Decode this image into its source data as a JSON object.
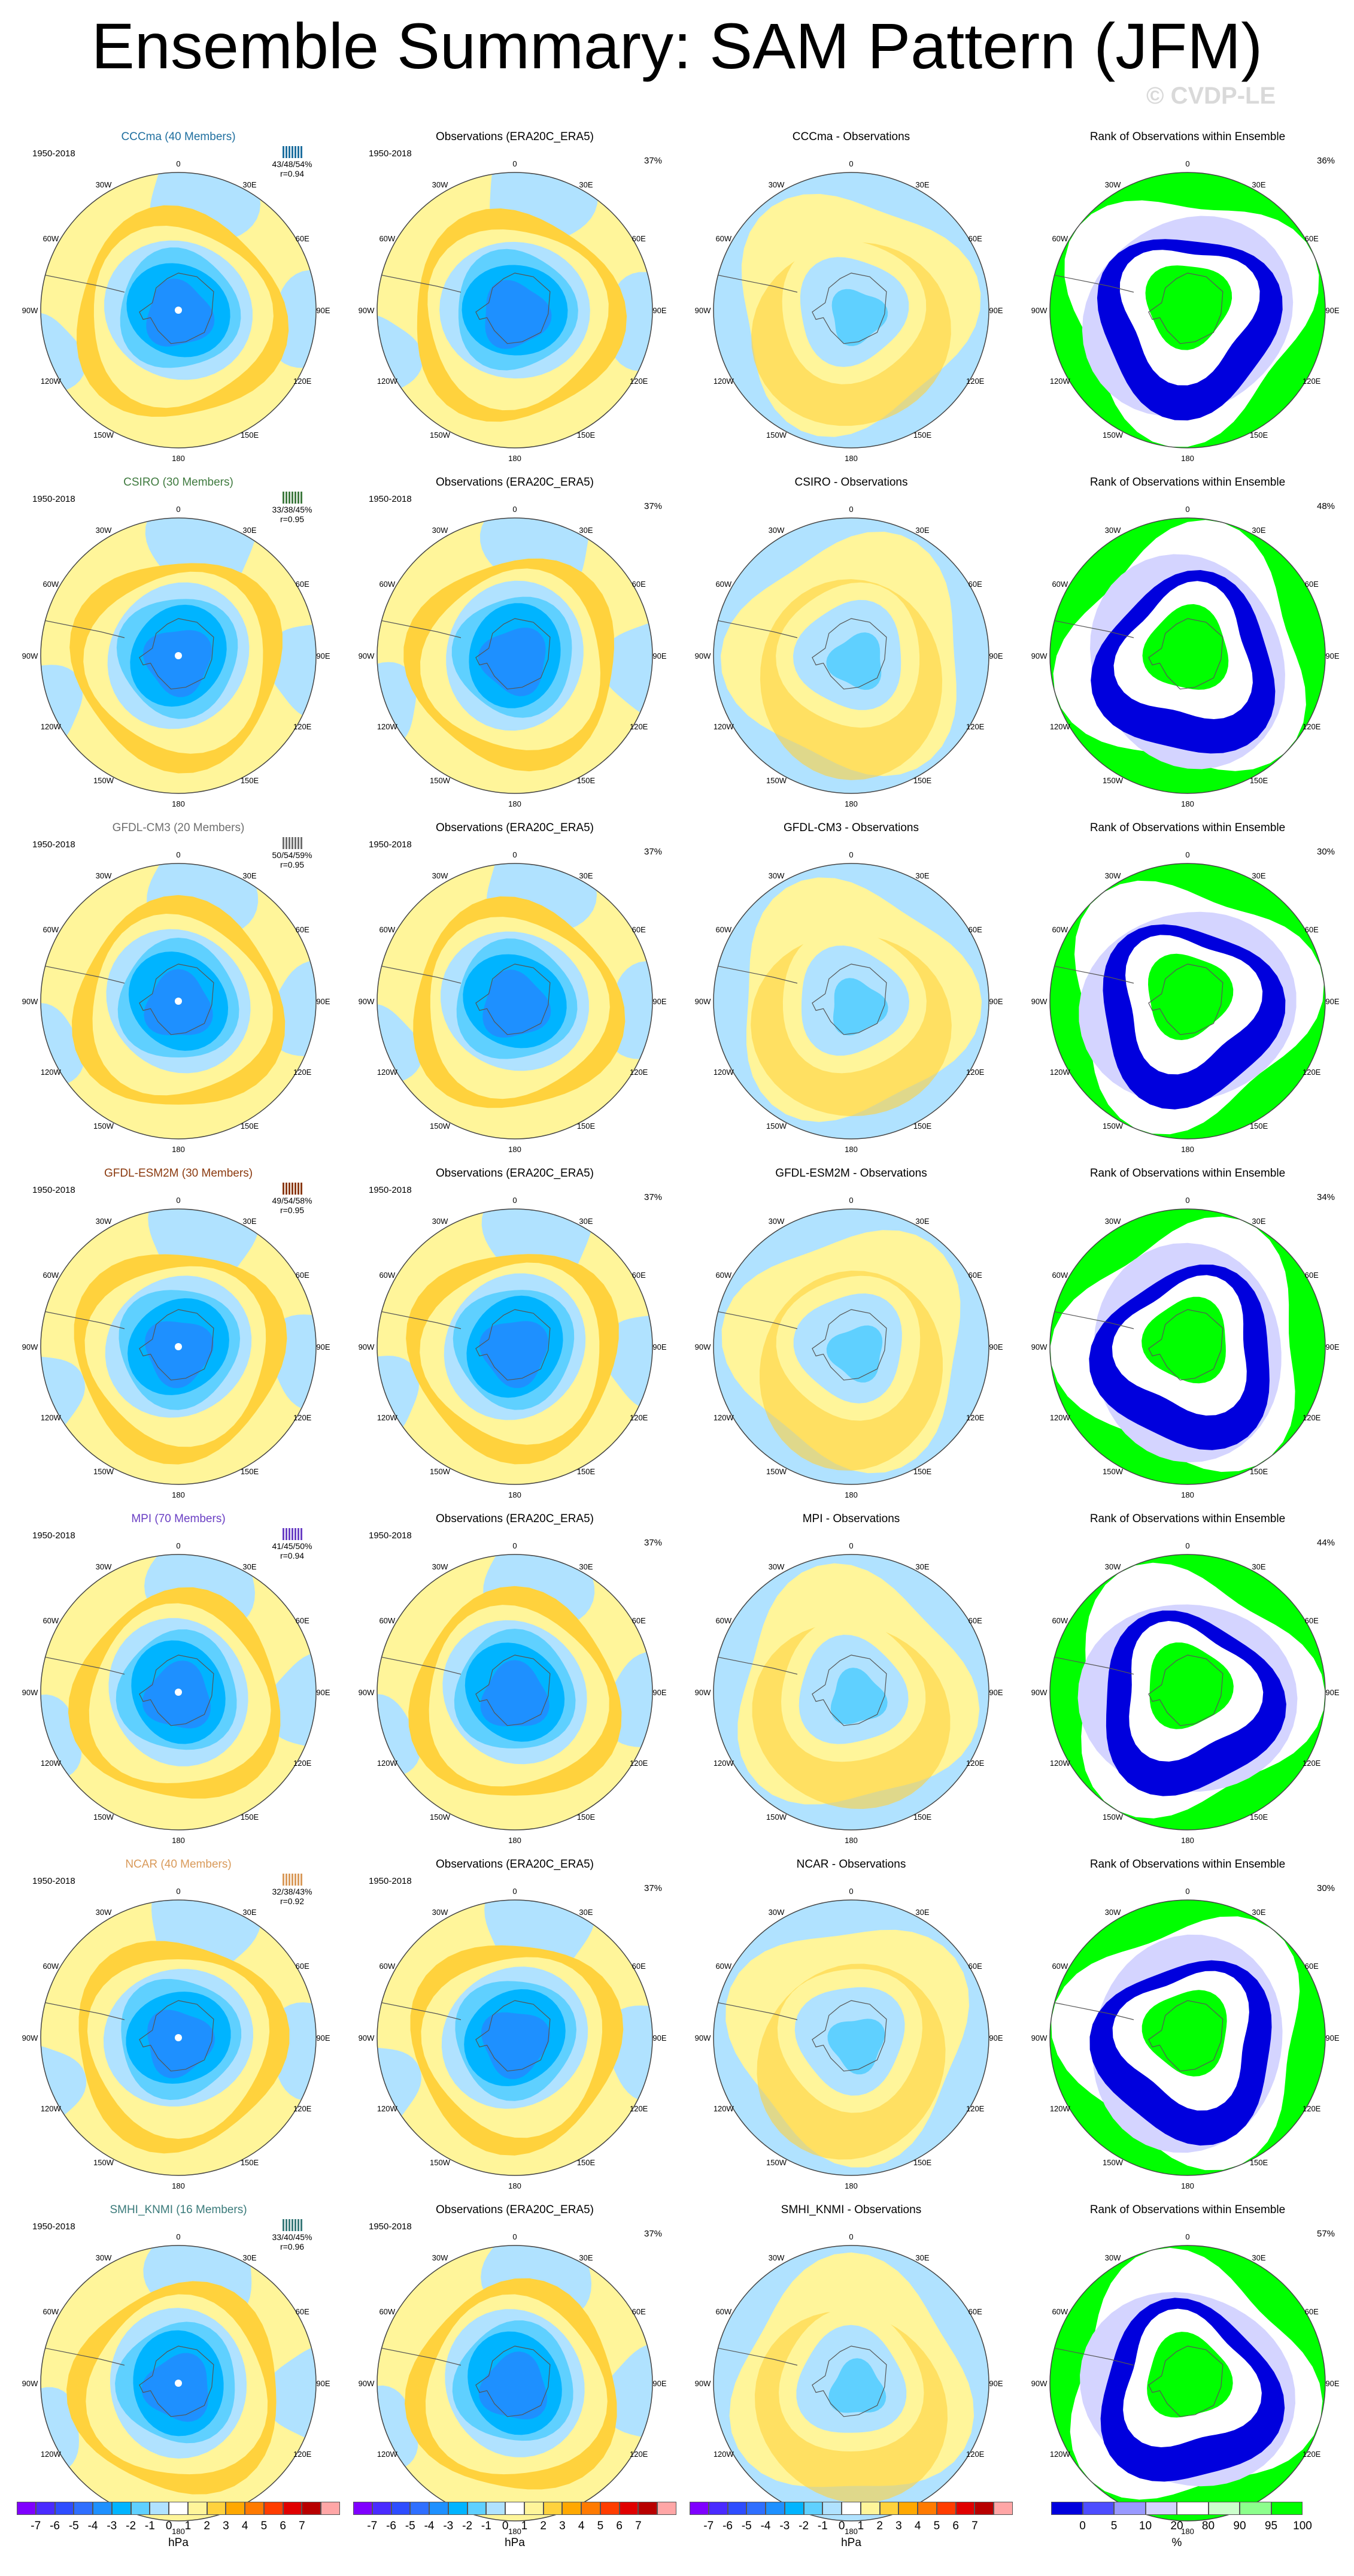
{
  "title": "Ensemble Summary: SAM Pattern (JFM)",
  "watermark": "© CVDP-LE",
  "obs_title": "Observations (ERA20C_ERA5)",
  "rank_title": "Rank of Observations within Ensemble",
  "period": "1950-2018",
  "obs_pct": "37%",
  "lon_labels": {
    "n": "0",
    "e1": "30E",
    "e2": "60E",
    "e3": "90E",
    "e4": "120E",
    "e5": "150E",
    "s": "180",
    "w5": "150W",
    "w4": "120W",
    "w3": "90W",
    "w2": "60W",
    "w1": "30W"
  },
  "models": [
    {
      "title": "CCCma (40 Members)",
      "color": "#1f6f9f",
      "stat1": "43/48/54%",
      "stat2": "r=0.94",
      "diff_title": "CCCma - Observations",
      "rank_pct": "36%"
    },
    {
      "title": "CSIRO (30 Members)",
      "color": "#3f7a3f",
      "stat1": "33/38/45%",
      "stat2": "r=0.95",
      "diff_title": "CSIRO - Observations",
      "rank_pct": "48%"
    },
    {
      "title": "GFDL-CM3 (20 Members)",
      "color": "#6e6e6e",
      "stat1": "50/54/59%",
      "stat2": "r=0.95",
      "diff_title": "GFDL-CM3 - Observations",
      "rank_pct": "30%"
    },
    {
      "title": "GFDL-ESM2M (30 Members)",
      "color": "#8b3a0f",
      "stat1": "49/54/58%",
      "stat2": "r=0.95",
      "diff_title": "GFDL-ESM2M - Observations",
      "rank_pct": "34%"
    },
    {
      "title": "MPI (70 Members)",
      "color": "#6a3fc4",
      "stat1": "41/45/50%",
      "stat2": "r=0.94",
      "diff_title": "MPI - Observations",
      "rank_pct": "44%"
    },
    {
      "title": "NCAR (40 Members)",
      "color": "#d99a5a",
      "stat1": "32/38/43%",
      "stat2": "r=0.92",
      "diff_title": "NCAR - Observations",
      "rank_pct": "30%"
    },
    {
      "title": "SMHI_KNMI (16 Members)",
      "color": "#3a7a7a",
      "stat1": "33/40/45%",
      "stat2": "r=0.96",
      "diff_title": "SMHI_KNMI - Observations",
      "rank_pct": "57%"
    }
  ],
  "colorbar_hpa": {
    "ticks": [
      "-7",
      "-6",
      "-5",
      "-4",
      "-3",
      "-2",
      "-1",
      "0",
      "1",
      "2",
      "3",
      "4",
      "5",
      "6",
      "7"
    ],
    "colors": [
      "#7f00ff",
      "#4a2bff",
      "#2e4dff",
      "#2f6fff",
      "#1e90ff",
      "#00b4ff",
      "#5fd0ff",
      "#b0e2ff",
      "#ffffff",
      "#fff59a",
      "#ffd23d",
      "#ffa800",
      "#ff7a00",
      "#ff3d00",
      "#e00000",
      "#b80000",
      "#ffa6a6"
    ],
    "unit": "hPa"
  },
  "colorbar_rank": {
    "ticks": [
      "0",
      "5",
      "10",
      "20",
      "80",
      "90",
      "95",
      "100"
    ],
    "colors": [
      "#0000dd",
      "#4d4dff",
      "#9999ff",
      "#d4d4ff",
      "#ffffff",
      "#ccffcc",
      "#8cff8c",
      "#00ff00"
    ],
    "unit": "%"
  }
}
